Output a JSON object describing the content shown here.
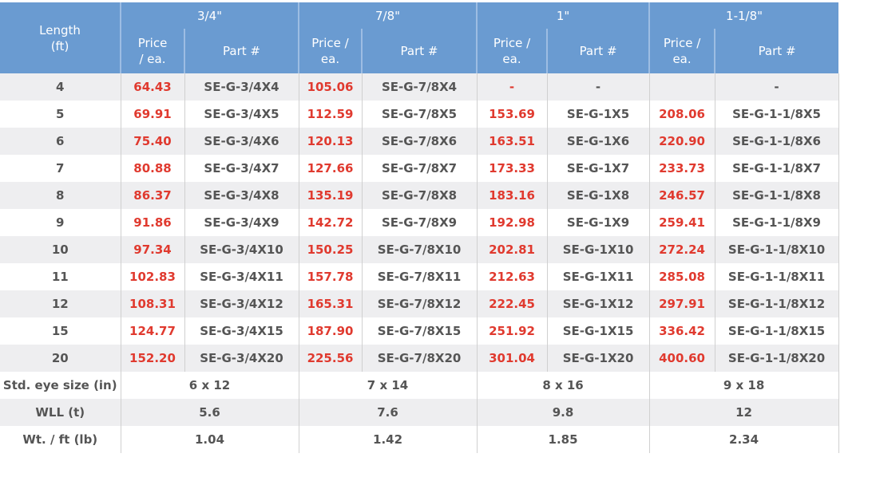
{
  "header": {
    "length_label": "Length\n(ft)",
    "sizes": [
      "3/4\"",
      "7/8\"",
      "1\"",
      "1-1/8\""
    ],
    "price_labels": [
      "Price\n/ ea.",
      "Price /\nea.",
      "Price /\nea.",
      "Price /\nea."
    ],
    "part_label": "Part #"
  },
  "colors": {
    "header_bg": "#6a9bd1",
    "price": "#e03a2f",
    "text": "#555555",
    "stripe": "#eeeef0"
  },
  "rows": [
    {
      "length": "4",
      "cells": [
        [
          "64.43",
          "SE-G-3/4X4"
        ],
        [
          "105.06",
          "SE-G-7/8X4"
        ],
        [
          "-",
          "-"
        ],
        [
          "",
          "-"
        ]
      ]
    },
    {
      "length": "5",
      "cells": [
        [
          "69.91",
          "SE-G-3/4X5"
        ],
        [
          "112.59",
          "SE-G-7/8X5"
        ],
        [
          "153.69",
          "SE-G-1X5"
        ],
        [
          "208.06",
          "SE-G-1-1/8X5"
        ]
      ]
    },
    {
      "length": "6",
      "cells": [
        [
          "75.40",
          "SE-G-3/4X6"
        ],
        [
          "120.13",
          "SE-G-7/8X6"
        ],
        [
          "163.51",
          "SE-G-1X6"
        ],
        [
          "220.90",
          "SE-G-1-1/8X6"
        ]
      ]
    },
    {
      "length": "7",
      "cells": [
        [
          "80.88",
          "SE-G-3/4X7"
        ],
        [
          "127.66",
          "SE-G-7/8X7"
        ],
        [
          "173.33",
          "SE-G-1X7"
        ],
        [
          "233.73",
          "SE-G-1-1/8X7"
        ]
      ]
    },
    {
      "length": "8",
      "cells": [
        [
          "86.37",
          "SE-G-3/4X8"
        ],
        [
          "135.19",
          "SE-G-7/8X8"
        ],
        [
          "183.16",
          "SE-G-1X8"
        ],
        [
          "246.57",
          "SE-G-1-1/8X8"
        ]
      ]
    },
    {
      "length": "9",
      "cells": [
        [
          "91.86",
          "SE-G-3/4X9"
        ],
        [
          "142.72",
          "SE-G-7/8X9"
        ],
        [
          "192.98",
          "SE-G-1X9"
        ],
        [
          "259.41",
          "SE-G-1-1/8X9"
        ]
      ]
    },
    {
      "length": "10",
      "cells": [
        [
          "97.34",
          "SE-G-3/4X10"
        ],
        [
          "150.25",
          "SE-G-7/8X10"
        ],
        [
          "202.81",
          "SE-G-1X10"
        ],
        [
          "272.24",
          "SE-G-1-1/8X10"
        ]
      ]
    },
    {
      "length": "11",
      "cells": [
        [
          "102.83",
          "SE-G-3/4X11"
        ],
        [
          "157.78",
          "SE-G-7/8X11"
        ],
        [
          "212.63",
          "SE-G-1X11"
        ],
        [
          "285.08",
          "SE-G-1-1/8X11"
        ]
      ]
    },
    {
      "length": "12",
      "cells": [
        [
          "108.31",
          "SE-G-3/4X12"
        ],
        [
          "165.31",
          "SE-G-7/8X12"
        ],
        [
          "222.45",
          "SE-G-1X12"
        ],
        [
          "297.91",
          "SE-G-1-1/8X12"
        ]
      ]
    },
    {
      "length": "15",
      "cells": [
        [
          "124.77",
          "SE-G-3/4X15"
        ],
        [
          "187.90",
          "SE-G-7/8X15"
        ],
        [
          "251.92",
          "SE-G-1X15"
        ],
        [
          "336.42",
          "SE-G-1-1/8X15"
        ]
      ]
    },
    {
      "length": "20",
      "cells": [
        [
          "152.20",
          "SE-G-3/4X20"
        ],
        [
          "225.56",
          "SE-G-7/8X20"
        ],
        [
          "301.04",
          "SE-G-1X20"
        ],
        [
          "400.60",
          "SE-G-1-1/8X20"
        ]
      ]
    }
  ],
  "footer": [
    {
      "label": "Std. eye size (in)",
      "values": [
        "6 x 12",
        "7 x 14",
        "8 x 16",
        "9 x 18"
      ]
    },
    {
      "label": "WLL (t)",
      "values": [
        "5.6",
        "7.6",
        "9.8",
        "12"
      ]
    },
    {
      "label": "Wt. / ft (lb)",
      "values": [
        "1.04",
        "1.42",
        "1.85",
        "2.34"
      ]
    }
  ]
}
